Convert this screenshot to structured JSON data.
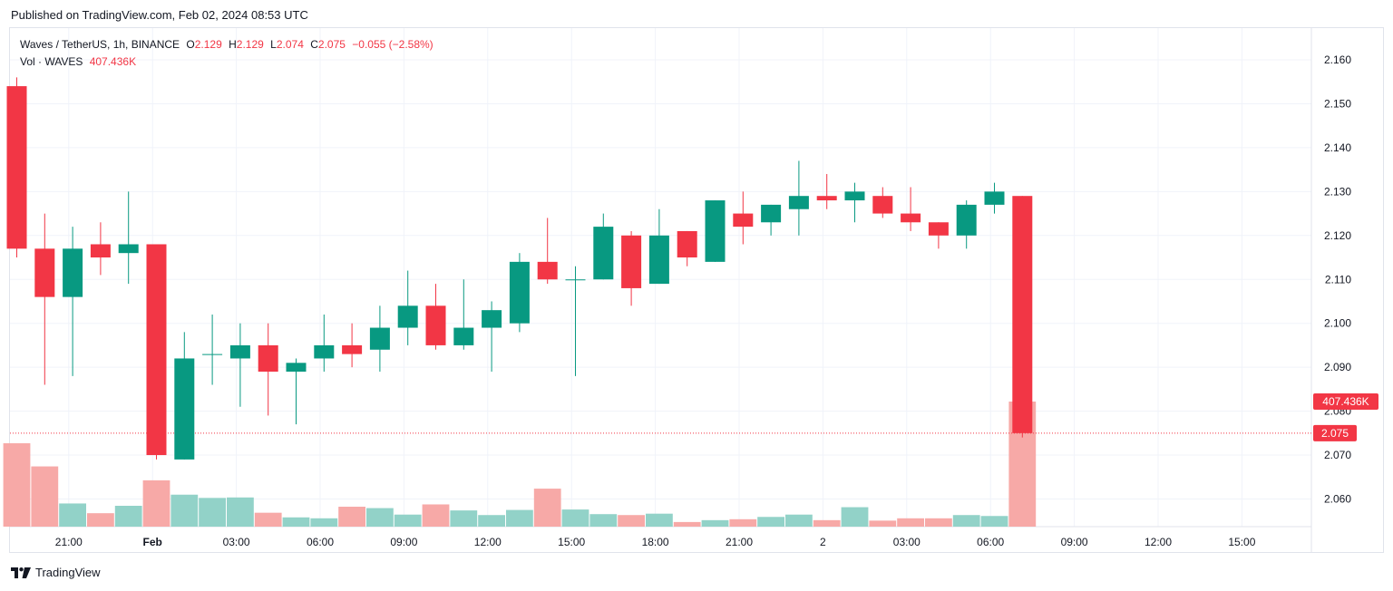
{
  "header": {
    "published": "Published on TradingView.com, Feb 02, 2024 08:53 UTC"
  },
  "legend": {
    "symbol": "Waves / TetherUS, 1h, BINANCE",
    "o_label": "O",
    "o_value": "2.129",
    "h_label": "H",
    "h_value": "2.129",
    "l_label": "L",
    "l_value": "2.074",
    "c_label": "C",
    "c_value": "2.075",
    "change": "−0.055 (−2.58%)",
    "vol_label": "Vol · WAVES",
    "vol_value": "407.436K"
  },
  "footer": {
    "brand": "TradingView"
  },
  "colors": {
    "up": "#089981",
    "down": "#f23645",
    "vol_up": "#92d2c8",
    "vol_down": "#f7a9a7",
    "grid": "#f0f3fa",
    "price_line": "#f23645"
  },
  "chart_data": {
    "type": "candlestick",
    "y_ticks": [
      "2.160",
      "2.150",
      "2.140",
      "2.130",
      "2.120",
      "2.110",
      "2.100",
      "2.090",
      "2.080",
      "2.070",
      "2.060"
    ],
    "x_ticks": [
      {
        "label": "21:00",
        "bold": false,
        "index": 1
      },
      {
        "label": "Feb",
        "bold": true,
        "index": 4
      },
      {
        "label": "03:00",
        "bold": false,
        "index": 7
      },
      {
        "label": "06:00",
        "bold": false,
        "index": 10
      },
      {
        "label": "09:00",
        "bold": false,
        "index": 13
      },
      {
        "label": "12:00",
        "bold": false,
        "index": 16
      },
      {
        "label": "15:00",
        "bold": false,
        "index": 19
      },
      {
        "label": "18:00",
        "bold": false,
        "index": 22
      },
      {
        "label": "21:00",
        "bold": false,
        "index": 25
      },
      {
        "label": "2",
        "bold": false,
        "index": 28
      },
      {
        "label": "03:00",
        "bold": false,
        "index": 31
      },
      {
        "label": "06:00",
        "bold": false,
        "index": 34
      },
      {
        "label": "09:00",
        "bold": false,
        "index": 37
      },
      {
        "label": "12:00",
        "bold": false,
        "index": 40
      },
      {
        "label": "15:00",
        "bold": false,
        "index": 43
      }
    ],
    "ylim": [
      2.0535,
      2.1625
    ],
    "candles": [
      {
        "o": 2.154,
        "h": 2.156,
        "l": 2.115,
        "c": 2.117,
        "v": 180
      },
      {
        "o": 2.117,
        "h": 2.125,
        "l": 2.086,
        "c": 2.106,
        "v": 130
      },
      {
        "o": 2.106,
        "h": 2.122,
        "l": 2.088,
        "c": 2.117,
        "v": 50
      },
      {
        "o": 2.118,
        "h": 2.123,
        "l": 2.111,
        "c": 2.115,
        "v": 29
      },
      {
        "o": 2.116,
        "h": 2.13,
        "l": 2.109,
        "c": 2.118,
        "v": 45
      },
      {
        "o": 2.118,
        "h": 2.118,
        "l": 2.069,
        "c": 2.07,
        "v": 100
      },
      {
        "o": 2.069,
        "h": 2.098,
        "l": 2.069,
        "c": 2.092,
        "v": 69
      },
      {
        "o": 2.093,
        "h": 2.102,
        "l": 2.086,
        "c": 2.093,
        "v": 62
      },
      {
        "o": 2.092,
        "h": 2.1,
        "l": 2.081,
        "c": 2.095,
        "v": 63
      },
      {
        "o": 2.095,
        "h": 2.1,
        "l": 2.079,
        "c": 2.089,
        "v": 30
      },
      {
        "o": 2.089,
        "h": 2.092,
        "l": 2.077,
        "c": 2.091,
        "v": 20
      },
      {
        "o": 2.092,
        "h": 2.102,
        "l": 2.089,
        "c": 2.095,
        "v": 18
      },
      {
        "o": 2.095,
        "h": 2.1,
        "l": 2.09,
        "c": 2.093,
        "v": 43
      },
      {
        "o": 2.094,
        "h": 2.104,
        "l": 2.089,
        "c": 2.099,
        "v": 40
      },
      {
        "o": 2.099,
        "h": 2.112,
        "l": 2.095,
        "c": 2.104,
        "v": 26
      },
      {
        "o": 2.104,
        "h": 2.109,
        "l": 2.094,
        "c": 2.095,
        "v": 48
      },
      {
        "o": 2.095,
        "h": 2.11,
        "l": 2.094,
        "c": 2.099,
        "v": 35
      },
      {
        "o": 2.099,
        "h": 2.105,
        "l": 2.089,
        "c": 2.103,
        "v": 25
      },
      {
        "o": 2.1,
        "h": 2.116,
        "l": 2.098,
        "c": 2.114,
        "v": 36
      },
      {
        "o": 2.114,
        "h": 2.124,
        "l": 2.109,
        "c": 2.11,
        "v": 82
      },
      {
        "o": 2.11,
        "h": 2.113,
        "l": 2.088,
        "c": 2.11,
        "v": 37
      },
      {
        "o": 2.11,
        "h": 2.125,
        "l": 2.11,
        "c": 2.122,
        "v": 27
      },
      {
        "o": 2.12,
        "h": 2.121,
        "l": 2.104,
        "c": 2.108,
        "v": 25
      },
      {
        "o": 2.109,
        "h": 2.126,
        "l": 2.109,
        "c": 2.12,
        "v": 28
      },
      {
        "o": 2.121,
        "h": 2.121,
        "l": 2.113,
        "c": 2.115,
        "v": 10
      },
      {
        "o": 2.114,
        "h": 2.128,
        "l": 2.114,
        "c": 2.128,
        "v": 14
      },
      {
        "o": 2.125,
        "h": 2.13,
        "l": 2.118,
        "c": 2.122,
        "v": 16
      },
      {
        "o": 2.123,
        "h": 2.127,
        "l": 2.12,
        "c": 2.127,
        "v": 21
      },
      {
        "o": 2.126,
        "h": 2.137,
        "l": 2.12,
        "c": 2.129,
        "v": 26
      },
      {
        "o": 2.129,
        "h": 2.134,
        "l": 2.126,
        "c": 2.128,
        "v": 14
      },
      {
        "o": 2.128,
        "h": 2.132,
        "l": 2.123,
        "c": 2.13,
        "v": 42
      },
      {
        "o": 2.129,
        "h": 2.131,
        "l": 2.124,
        "c": 2.125,
        "v": 13
      },
      {
        "o": 2.125,
        "h": 2.131,
        "l": 2.121,
        "c": 2.123,
        "v": 18
      },
      {
        "o": 2.123,
        "h": 2.123,
        "l": 2.117,
        "c": 2.12,
        "v": 18
      },
      {
        "o": 2.12,
        "h": 2.128,
        "l": 2.117,
        "c": 2.127,
        "v": 25
      },
      {
        "o": 2.127,
        "h": 2.132,
        "l": 2.125,
        "c": 2.13,
        "v": 23
      },
      {
        "o": 2.129,
        "h": 2.129,
        "l": 2.074,
        "c": 2.075,
        "v": 270
      }
    ],
    "last_price": 2.075,
    "last_price_label": "2.075",
    "volume_label": "407.436K"
  }
}
